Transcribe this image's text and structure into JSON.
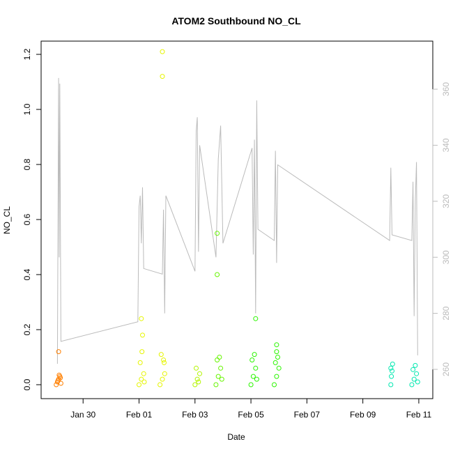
{
  "chart_data": {
    "type": "scatter",
    "title": "ATOM2 Southbound NO_CL",
    "xlabel": "Date",
    "ylabel": "NO_CL",
    "xlim": [
      "2016-01-28T12:00",
      "2016-02-11T12:00"
    ],
    "ylim": [
      0,
      1.25
    ],
    "x_ticks": [
      "Jan 30",
      "Feb 01",
      "Feb 03",
      "Feb 05",
      "Feb 07",
      "Feb 09",
      "Feb 11"
    ],
    "y_ticks": [
      "0.0",
      "0.2",
      "0.4",
      "0.6",
      "0.8",
      "1.0",
      "1.2"
    ],
    "y2_ticks": [
      "260",
      "280",
      "300",
      "320",
      "340",
      "360"
    ],
    "y2lim": [
      250,
      375
    ],
    "series": [
      {
        "color": "#ff7f00",
        "values": [
          {
            "x": "2016-01-29T01:00",
            "y": 0.0
          },
          {
            "x": "2016-01-29T02:00",
            "y": 0.01
          },
          {
            "x": "2016-01-29T03:00",
            "y": 0.02
          },
          {
            "x": "2016-01-29T04:00",
            "y": 0.03
          },
          {
            "x": "2016-01-29T05:00",
            "y": 0.005
          },
          {
            "x": "2016-01-29T03:30",
            "y": 0.035
          },
          {
            "x": "2016-01-29T02:30",
            "y": 0.015
          },
          {
            "x": "2016-01-29T04:30",
            "y": 0.025
          },
          {
            "x": "2016-01-29T03:00",
            "y": 0.12
          }
        ]
      },
      {
        "color": "#e6f500",
        "values": [
          {
            "x": "2016-02-01T00:00",
            "y": 0.0
          },
          {
            "x": "2016-02-01T02:00",
            "y": 0.02
          },
          {
            "x": "2016-02-01T04:00",
            "y": 0.04
          },
          {
            "x": "2016-02-01T01:00",
            "y": 0.08
          },
          {
            "x": "2016-02-01T02:30",
            "y": 0.12
          },
          {
            "x": "2016-02-01T03:00",
            "y": 0.18
          },
          {
            "x": "2016-02-01T02:00",
            "y": 0.24
          },
          {
            "x": "2016-02-01T04:30",
            "y": 0.01
          },
          {
            "x": "2016-02-01T18:00",
            "y": 0.0
          },
          {
            "x": "2016-02-01T20:00",
            "y": 0.02
          },
          {
            "x": "2016-02-01T22:00",
            "y": 0.04
          },
          {
            "x": "2016-02-01T19:00",
            "y": 0.11
          },
          {
            "x": "2016-02-01T21:00",
            "y": 0.09
          },
          {
            "x": "2016-02-01T21:30",
            "y": 0.08
          },
          {
            "x": "2016-02-01T20:00",
            "y": 1.12
          },
          {
            "x": "2016-02-01T20:00",
            "y": 1.21
          }
        ]
      },
      {
        "color": "#b3f500",
        "values": [
          {
            "x": "2016-02-03T00:00",
            "y": 0.0
          },
          {
            "x": "2016-02-03T02:00",
            "y": 0.02
          },
          {
            "x": "2016-02-03T04:00",
            "y": 0.04
          },
          {
            "x": "2016-02-03T01:00",
            "y": 0.06
          },
          {
            "x": "2016-02-03T03:00",
            "y": 0.01
          }
        ]
      },
      {
        "color": "#66f500",
        "values": [
          {
            "x": "2016-02-03T18:00",
            "y": 0.0
          },
          {
            "x": "2016-02-03T20:00",
            "y": 0.03
          },
          {
            "x": "2016-02-03T22:00",
            "y": 0.06
          },
          {
            "x": "2016-02-03T19:00",
            "y": 0.09
          },
          {
            "x": "2016-02-03T21:00",
            "y": 0.1
          },
          {
            "x": "2016-02-03T23:00",
            "y": 0.02
          },
          {
            "x": "2016-02-03T19:00",
            "y": 0.4
          },
          {
            "x": "2016-02-03T19:00",
            "y": 0.55
          }
        ]
      },
      {
        "color": "#2bf500",
        "values": [
          {
            "x": "2016-02-05T00:00",
            "y": 0.0
          },
          {
            "x": "2016-02-05T02:00",
            "y": 0.03
          },
          {
            "x": "2016-02-05T04:00",
            "y": 0.06
          },
          {
            "x": "2016-02-05T01:00",
            "y": 0.09
          },
          {
            "x": "2016-02-05T03:00",
            "y": 0.11
          },
          {
            "x": "2016-02-05T05:00",
            "y": 0.02
          },
          {
            "x": "2016-02-05T04:00",
            "y": 0.24
          },
          {
            "x": "2016-02-05T20:00",
            "y": 0.0
          },
          {
            "x": "2016-02-05T22:00",
            "y": 0.03
          },
          {
            "x": "2016-02-06T00:00",
            "y": 0.06
          },
          {
            "x": "2016-02-05T21:00",
            "y": 0.08
          },
          {
            "x": "2016-02-05T23:00",
            "y": 0.1
          },
          {
            "x": "2016-02-05T22:00",
            "y": 0.12
          },
          {
            "x": "2016-02-05T22:00",
            "y": 0.145
          }
        ]
      },
      {
        "color": "#00e8b0",
        "values": [
          {
            "x": "2016-02-10T00:00",
            "y": 0.0
          },
          {
            "x": "2016-02-10T00:30",
            "y": 0.03
          },
          {
            "x": "2016-02-10T01:00",
            "y": 0.05
          },
          {
            "x": "2016-02-10T01:30",
            "y": 0.075
          },
          {
            "x": "2016-02-10T00:00",
            "y": 0.06
          },
          {
            "x": "2016-02-10T18:00",
            "y": 0.0
          },
          {
            "x": "2016-02-10T20:00",
            "y": 0.02
          },
          {
            "x": "2016-02-10T22:00",
            "y": 0.04
          },
          {
            "x": "2016-02-10T19:00",
            "y": 0.055
          },
          {
            "x": "2016-02-10T21:00",
            "y": 0.07
          },
          {
            "x": "2016-02-10T23:00",
            "y": 0.01
          }
        ]
      }
    ],
    "line_series": {
      "color": "#bbbbbb",
      "axis": "right",
      "values": [
        {
          "x": "2016-01-29T02:00",
          "y": 262
        },
        {
          "x": "2016-01-29T02:30",
          "y": 318
        },
        {
          "x": "2016-01-29T03:00",
          "y": 364
        },
        {
          "x": "2016-01-29T03:30",
          "y": 300
        },
        {
          "x": "2016-01-29T04:00",
          "y": 362
        },
        {
          "x": "2016-01-29T05:00",
          "y": 270
        },
        {
          "x": "2016-01-31T23:00",
          "y": 277
        },
        {
          "x": "2016-02-01T00:00",
          "y": 318
        },
        {
          "x": "2016-02-01T01:00",
          "y": 322
        },
        {
          "x": "2016-02-01T02:00",
          "y": 305
        },
        {
          "x": "2016-02-01T03:00",
          "y": 325
        },
        {
          "x": "2016-02-01T04:00",
          "y": 296
        },
        {
          "x": "2016-02-01T20:00",
          "y": 294
        },
        {
          "x": "2016-02-01T21:00",
          "y": 317
        },
        {
          "x": "2016-02-01T22:00",
          "y": 280
        },
        {
          "x": "2016-02-01T23:00",
          "y": 322
        },
        {
          "x": "2016-02-03T00:00",
          "y": 295
        },
        {
          "x": "2016-02-03T01:00",
          "y": 345
        },
        {
          "x": "2016-02-03T02:00",
          "y": 350
        },
        {
          "x": "2016-02-03T03:00",
          "y": 302
        },
        {
          "x": "2016-02-03T04:00",
          "y": 340
        },
        {
          "x": "2016-02-03T18:00",
          "y": 300
        },
        {
          "x": "2016-02-03T20:00",
          "y": 335
        },
        {
          "x": "2016-02-03T22:00",
          "y": 347
        },
        {
          "x": "2016-02-04T00:00",
          "y": 305
        },
        {
          "x": "2016-02-05T01:00",
          "y": 339
        },
        {
          "x": "2016-02-05T02:00",
          "y": 301
        },
        {
          "x": "2016-02-05T03:00",
          "y": 342
        },
        {
          "x": "2016-02-05T04:00",
          "y": 280
        },
        {
          "x": "2016-02-05T05:00",
          "y": 356
        },
        {
          "x": "2016-02-05T06:00",
          "y": 310
        },
        {
          "x": "2016-02-05T20:00",
          "y": 306
        },
        {
          "x": "2016-02-05T21:00",
          "y": 338
        },
        {
          "x": "2016-02-05T22:00",
          "y": 298
        },
        {
          "x": "2016-02-05T23:00",
          "y": 333
        },
        {
          "x": "2016-02-09T23:00",
          "y": 306
        },
        {
          "x": "2016-02-10T00:00",
          "y": 332
        },
        {
          "x": "2016-02-10T01:00",
          "y": 308
        },
        {
          "x": "2016-02-10T18:00",
          "y": 306
        },
        {
          "x": "2016-02-10T19:00",
          "y": 327
        },
        {
          "x": "2016-02-10T20:00",
          "y": 279
        },
        {
          "x": "2016-02-10T21:00",
          "y": 320
        },
        {
          "x": "2016-02-10T22:00",
          "y": 334
        },
        {
          "x": "2016-02-10T23:00",
          "y": 265
        }
      ]
    },
    "grid": false,
    "legend": "none"
  }
}
